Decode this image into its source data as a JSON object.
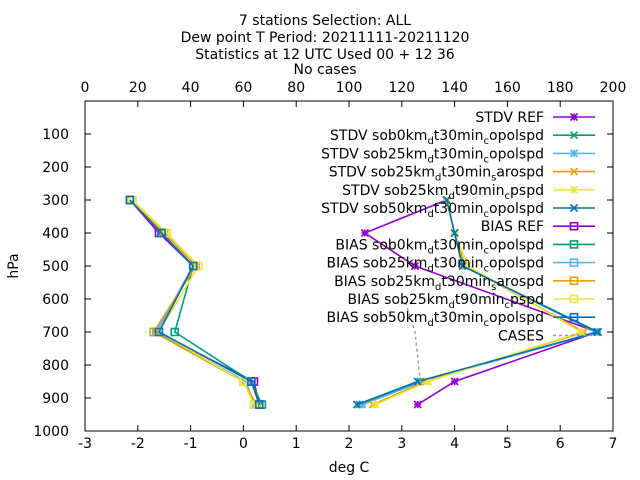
{
  "chart_data": {
    "type": "line",
    "title": [
      "7 stations Selection: ALL",
      "Dew point T  Period: 20211111-20211120",
      "Statistics at 12 UTC  Used 00 + 12 36",
      "No cases"
    ],
    "xlabel": "deg C",
    "ylabel": "hPa",
    "xlim": [
      -3,
      7
    ],
    "ylim": [
      1000,
      0
    ],
    "x2lim": [
      0,
      200
    ],
    "x_ticks": [
      "-3",
      "-2",
      "-1",
      "0",
      "1",
      "2",
      "3",
      "4",
      "5",
      "6",
      "7"
    ],
    "x2_ticks": [
      "0",
      "20",
      "40",
      "60",
      "80",
      "100",
      "120",
      "140",
      "160",
      "180",
      "200"
    ],
    "y_ticks": [
      "100",
      "200",
      "300",
      "400",
      "500",
      "600",
      "700",
      "800",
      "900",
      "1000"
    ],
    "grid": false,
    "legend_position": "top-right",
    "series": [
      {
        "name": "STDV REF",
        "label": {
          "pre": "STDV REF"
        },
        "color": "#9400d3",
        "marker": "star",
        "x": [
          3.3,
          4.0,
          6.7,
          3.25,
          2.3,
          3.85
        ],
        "y": [
          920,
          850,
          700,
          500,
          400,
          300
        ]
      },
      {
        "name": "STDV sob0kmdt30mincopolspd",
        "label": {
          "pre": "STDV sob0km",
          "s1": "d",
          "mid": "t30min",
          "s2": "c",
          "post": "opolspd"
        },
        "color": "#009e73",
        "marker": "x",
        "x": [
          2.2,
          3.35,
          6.72,
          4.15,
          4.0,
          3.85
        ],
        "y": [
          920,
          850,
          700,
          500,
          400,
          300
        ]
      },
      {
        "name": "STDV sob25kmdt30mincopolspd",
        "label": {
          "pre": "STDV sob25km",
          "s1": "d",
          "mid": "t30min",
          "s2": "c",
          "post": "opolspd"
        },
        "color": "#56b4e9",
        "marker": "star",
        "x": [
          2.25,
          3.4,
          6.68,
          4.15,
          4.0,
          3.85
        ],
        "y": [
          920,
          850,
          700,
          500,
          400,
          300
        ]
      },
      {
        "name": "STDV sob25kmdt30minsarospd",
        "label": {
          "pre": "STDV sob25km",
          "s1": "d",
          "mid": "t30min",
          "s2": "s",
          "post": "arospd"
        },
        "color": "#e69f00",
        "marker": "x",
        "x": [
          2.45,
          3.45,
          6.45,
          4.2,
          4.0,
          3.85
        ],
        "y": [
          920,
          850,
          700,
          500,
          400,
          300
        ]
      },
      {
        "name": "STDV sob25kmdt90mincpspd",
        "label": {
          "pre": "STDV sob25km",
          "s1": "d",
          "mid": "t90min",
          "s2": "c",
          "post": "pspd"
        },
        "color": "#f0e442",
        "marker": "star",
        "x": [
          2.5,
          3.5,
          6.4,
          4.25,
          4.0,
          3.85
        ],
        "y": [
          920,
          850,
          700,
          500,
          400,
          300
        ]
      },
      {
        "name": "STDV sob50kmdt30mincopolspd",
        "label": {
          "pre": "STDV sob50km",
          "s1": "d",
          "mid": "t30min",
          "s2": "c",
          "post": "opolspd"
        },
        "color": "#0072b2",
        "marker": "x",
        "x": [
          2.15,
          3.3,
          6.7,
          4.15,
          4.0,
          3.85
        ],
        "y": [
          920,
          850,
          700,
          500,
          400,
          300
        ]
      },
      {
        "name": "BIAS REF",
        "label": {
          "pre": "BIAS REF"
        },
        "color": "#9400d3",
        "marker": "box",
        "x": [
          0.3,
          0.2,
          -1.65,
          -0.95,
          -1.6,
          -2.15
        ],
        "y": [
          920,
          850,
          700,
          500,
          400,
          300
        ]
      },
      {
        "name": "BIAS sob0kmdt30mincopolspd",
        "label": {
          "pre": "BIAS sob0km",
          "s1": "d",
          "mid": "t30min",
          "s2": "c",
          "post": "opolspd"
        },
        "color": "#009e73",
        "marker": "box",
        "x": [
          0.35,
          0.15,
          -1.3,
          -0.95,
          -1.55,
          -2.15
        ],
        "y": [
          920,
          850,
          700,
          500,
          400,
          300
        ]
      },
      {
        "name": "BIAS sob25kmdt30mincopolspd",
        "label": {
          "pre": "BIAS sob25km",
          "s1": "d",
          "mid": "t30min",
          "s2": "c",
          "post": "opolspd"
        },
        "color": "#56b4e9",
        "marker": "box",
        "x": [
          0.2,
          0.05,
          -1.65,
          -0.95,
          -1.55,
          -2.15
        ],
        "y": [
          920,
          850,
          700,
          500,
          400,
          300
        ]
      },
      {
        "name": "BIAS sob25kmdt30minsarospd",
        "label": {
          "pre": "BIAS sob25km",
          "s1": "d",
          "mid": "t30min",
          "s2": "s",
          "post": "arospd"
        },
        "color": "#e69f00",
        "marker": "box",
        "x": [
          0.25,
          0.0,
          -1.7,
          -0.9,
          -1.5,
          -2.15
        ],
        "y": [
          920,
          850,
          700,
          500,
          400,
          300
        ]
      },
      {
        "name": "BIAS sob25kmdt90mincpspd",
        "label": {
          "pre": "BIAS sob25km",
          "s1": "d",
          "mid": "t90min",
          "s2": "c",
          "post": "pspd"
        },
        "color": "#f0e442",
        "marker": "box",
        "x": [
          0.2,
          0.0,
          -1.6,
          -0.85,
          -1.45,
          -2.1
        ],
        "y": [
          920,
          850,
          700,
          500,
          400,
          300
        ]
      },
      {
        "name": "BIAS sob50kmdt30mincopolspd",
        "label": {
          "pre": "BIAS sob50km",
          "s1": "d",
          "mid": "t30min",
          "s2": "c",
          "post": "opolspd"
        },
        "color": "#0072b2",
        "marker": "box",
        "x": [
          0.3,
          0.15,
          -1.6,
          -0.95,
          -1.55,
          -2.15
        ],
        "y": [
          920,
          850,
          700,
          500,
          400,
          300
        ]
      }
    ],
    "cases": {
      "name": "CASES",
      "label": {
        "pre": "CASES"
      },
      "color": "#a0a0a0",
      "axis": "x2",
      "x": [
        127,
        125,
        121
      ],
      "y": [
        850,
        700,
        600
      ]
    }
  }
}
